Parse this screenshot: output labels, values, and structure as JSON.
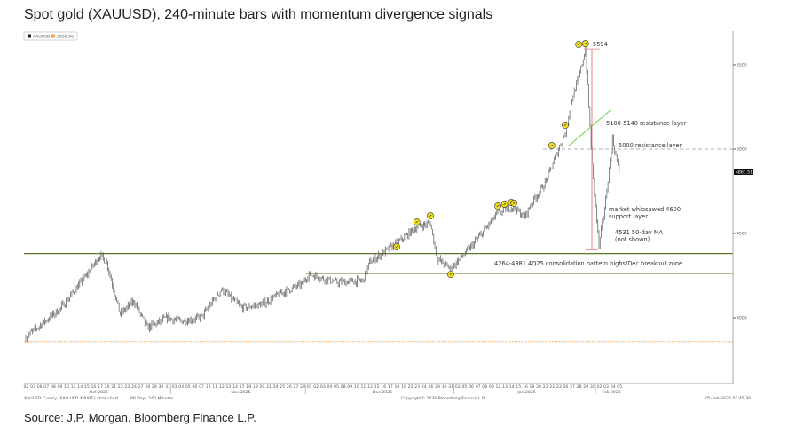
{
  "title": "Spot gold (XAUUSD), 240-minute bars with momentum divergence signals",
  "source": "Source: J.P. Morgan. Bloomberg Finance L.P.",
  "legend": {
    "series": "XAUUSD",
    "reference": "3858.96",
    "series_color": "#222222",
    "reference_color": "#f0a050"
  },
  "footer": {
    "ticker": "XAUUSD Curncy (XAU-USD X-RATE) strat chart",
    "period": "90 Days 240 Minutes",
    "copyright": "Copyright© 2026 Bloomberg Finance L.P.",
    "timestamp": "05-Feb-2026 07:45:30"
  },
  "chart_data": {
    "type": "line",
    "title": "Spot gold (XAUUSD), 240-minute bars with momentum divergence signals",
    "bar_interval": "240 minutes",
    "ylim": [
      3700,
      5650
    ],
    "yticks": [
      4000,
      4500,
      5000,
      5500
    ],
    "last_price": "4861.51",
    "grid": false,
    "months": [
      {
        "label": "Oct 2025",
        "days": [
          "02",
          "03",
          "06",
          "07",
          "08",
          "09",
          "10",
          "13",
          "14",
          "15",
          "16",
          "17",
          "20",
          "21",
          "22",
          "23",
          "24",
          "27",
          "28",
          "29",
          "30",
          "31"
        ]
      },
      {
        "label": "Nov 2025",
        "days": [
          "03",
          "04",
          "05",
          "06",
          "07",
          "10",
          "11",
          "12",
          "13",
          "14",
          "17",
          "18",
          "19",
          "20",
          "21",
          "24",
          "25",
          "26",
          "27",
          "28"
        ]
      },
      {
        "label": "Dec 2025",
        "days": [
          "01",
          "02",
          "03",
          "04",
          "05",
          "08",
          "09",
          "10",
          "11",
          "12",
          "15",
          "16",
          "17",
          "18",
          "19",
          "22",
          "23",
          "24",
          "26",
          "29",
          "30",
          "31"
        ]
      },
      {
        "label": "Jan 2026",
        "days": [
          "02",
          "05",
          "06",
          "07",
          "08",
          "09",
          "12",
          "13",
          "14",
          "15",
          "16",
          "19",
          "20",
          "21",
          "22",
          "23",
          "26",
          "27",
          "28",
          "29",
          "30"
        ]
      },
      {
        "label": "Feb 2026",
        "days": [
          "02",
          "03",
          "04",
          "05"
        ]
      }
    ],
    "price_path": {
      "x": [
        "2025-10-02",
        "2025-10-09",
        "2025-10-15",
        "2025-10-17",
        "2025-10-20",
        "2025-10-22",
        "2025-10-24",
        "2025-10-28",
        "2025-10-31",
        "2025-11-04",
        "2025-11-07",
        "2025-11-12",
        "2025-11-17",
        "2025-11-20",
        "2025-11-25",
        "2025-11-28",
        "2025-12-01",
        "2025-12-05",
        "2025-12-11",
        "2025-12-12",
        "2025-12-18",
        "2025-12-23",
        "2025-12-26",
        "2025-12-29",
        "2025-12-31",
        "2026-01-06",
        "2026-01-12",
        "2026-01-14",
        "2026-01-16",
        "2026-01-19",
        "2026-01-21",
        "2026-01-23",
        "2026-01-26",
        "2026-01-27",
        "2026-01-28",
        "2026-01-29",
        "2026-01-30",
        "2026-02-02",
        "2026-02-03",
        "2026-02-04",
        "2026-02-05"
      ],
      "y": [
        3885,
        4050,
        4250,
        4370,
        4330,
        4020,
        4100,
        3940,
        4000,
        3980,
        4000,
        4170,
        4060,
        4080,
        4150,
        4200,
        4260,
        4210,
        4220,
        4330,
        4440,
        4540,
        4560,
        4350,
        4290,
        4420,
        4620,
        4660,
        4600,
        4680,
        4800,
        5000,
        5100,
        5300,
        5420,
        5594,
        4900,
        4420,
        4700,
        5060,
        4861.51
      ]
    },
    "signals": {
      "x": [
        "2025-12-18",
        "2025-12-23",
        "2025-12-26",
        "2025-12-31",
        "2026-01-12",
        "2026-01-13",
        "2026-01-14",
        "2026-01-15",
        "2026-01-22",
        "2026-01-26",
        "2026-01-28",
        "2026-01-29"
      ],
      "y": [
        4421,
        4568,
        4605,
        4258,
        4663,
        4674,
        4684,
        4680,
        5021,
        5142,
        5621,
        5626
      ]
    },
    "levels": [
      {
        "value": 4381,
        "style": "solid",
        "color": "#5a7a2a"
      },
      {
        "value": 4264,
        "style": "solid",
        "color": "#5a7a2a"
      },
      {
        "value": 3858.96,
        "style": "dotted",
        "color": "#f0a050"
      },
      {
        "value": 5000,
        "style": "dashed",
        "color": "#999999"
      }
    ],
    "annotations": {
      "peak": "5594",
      "resistance_upper": "5100-5140 resistance layer",
      "resistance": "5000 resistance layer",
      "whipsaw_1": "market whipsawed 4600",
      "whipsaw_2": "support layer",
      "ma_1": "4531 50-day MA",
      "ma_2": "(not shown)",
      "zone": "4264-4381 4Q25 consolidation pattern highs/Dec breakout zone"
    },
    "colors": {
      "bars": "#555555",
      "signal": "#f2e01a",
      "drop_line": "#e88080",
      "trend": "#66cc44"
    }
  }
}
